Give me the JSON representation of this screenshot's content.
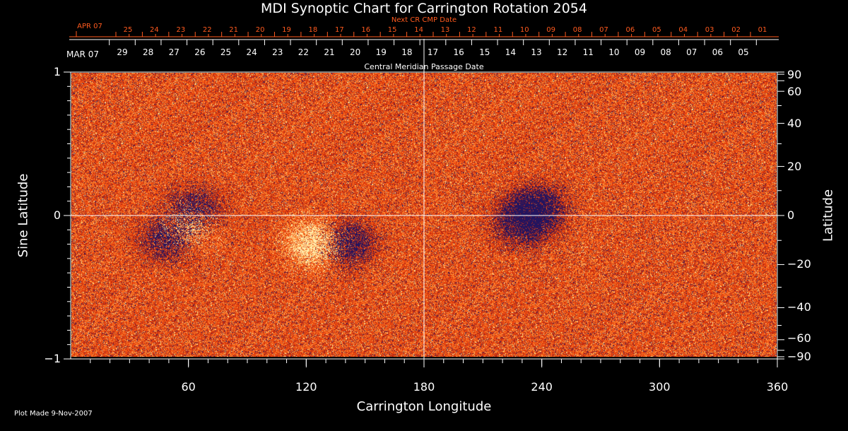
{
  "chart_data": {
    "type": "heatmap",
    "title": "MDI Synoptic Chart for Carrington Rotation 2054",
    "xlabel": "Carrington Longitude",
    "ylabel_left": "Sine Latitude",
    "ylabel_right": "Latitude",
    "xlim": [
      0,
      360
    ],
    "ylim": [
      -1,
      1
    ],
    "x_ticks": [
      60,
      120,
      180,
      240,
      300,
      360
    ],
    "left_y_ticks": [
      {
        "value": 1,
        "label": "1"
      },
      {
        "value": 0,
        "label": "0"
      },
      {
        "value": -1,
        "label": "−1"
      }
    ],
    "right_y_ticks": [
      {
        "deg": 90,
        "label": "90"
      },
      {
        "deg": 60,
        "label": "60"
      },
      {
        "deg": 40,
        "label": "40"
      },
      {
        "deg": 20,
        "label": "20"
      },
      {
        "deg": 0,
        "label": "0"
      },
      {
        "deg": -20,
        "label": "−20"
      },
      {
        "deg": -40,
        "label": "−40"
      },
      {
        "deg": -60,
        "label": "−60"
      },
      {
        "deg": -90,
        "label": "−90"
      }
    ],
    "next_cr_cmp_date": {
      "label": "Next CR CMP Date",
      "month": "APR 07",
      "days": [
        "25",
        "24",
        "23",
        "22",
        "21",
        "20",
        "19",
        "18",
        "17",
        "16",
        "15",
        "14",
        "13",
        "12",
        "11",
        "10",
        "09",
        "08",
        "07",
        "06",
        "05",
        "04",
        "03",
        "02",
        "01"
      ]
    },
    "cmp_date": {
      "label": "Central Meridian Passage Date",
      "month": "MAR 07",
      "days": [
        "29",
        "28",
        "27",
        "26",
        "25",
        "24",
        "23",
        "22",
        "21",
        "20",
        "19",
        "18",
        "17",
        "16",
        "15",
        "14",
        "13",
        "12",
        "11",
        "10",
        "09",
        "08",
        "07",
        "06",
        "05"
      ]
    },
    "grid": {
      "equator": true,
      "lon_180": true
    },
    "colormap": "dark-blue (negative field) to red-orange (quiet) to pale yellow (positive field)",
    "features": [
      {
        "polarity": "negative",
        "lon": 50,
        "sinlat": -0.15
      },
      {
        "polarity": "positive",
        "lon": 58,
        "sinlat": -0.08
      },
      {
        "polarity": "negative",
        "lon": 62,
        "sinlat": 0.02
      },
      {
        "polarity": "positive",
        "lon": 125,
        "sinlat": -0.2
      },
      {
        "polarity": "negative",
        "lon": 140,
        "sinlat": -0.2
      },
      {
        "polarity": "negative",
        "lon": 230,
        "sinlat": -0.05
      },
      {
        "polarity": "negative",
        "lon": 238,
        "sinlat": 0.05
      }
    ]
  },
  "footer": {
    "plot_made": "Plot Made  9-Nov-2007"
  },
  "colors": {
    "background": "#000000",
    "axes": "#ffffff",
    "next_cr": "#ff5a1e",
    "map_base": "#f04a10"
  }
}
